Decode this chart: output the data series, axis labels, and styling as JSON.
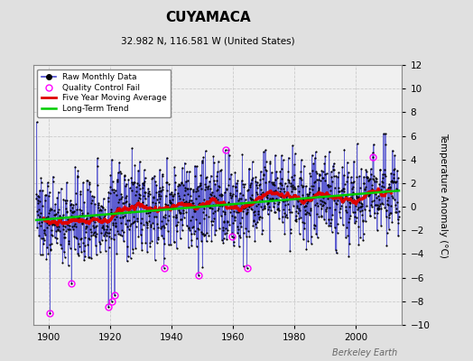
{
  "title": "CUYAMACA",
  "subtitle": "32.982 N, 116.581 W (United States)",
  "ylabel": "Temperature Anomaly (°C)",
  "watermark": "Berkeley Earth",
  "year_start": 1896,
  "year_end": 2014,
  "ylim": [
    -10,
    12
  ],
  "yticks": [
    -10,
    -8,
    -6,
    -4,
    -2,
    0,
    2,
    4,
    6,
    8,
    10,
    12
  ],
  "xticks": [
    1900,
    1920,
    1940,
    1960,
    1980,
    2000
  ],
  "bg_color": "#e0e0e0",
  "plot_bg_color": "#f0f0f0",
  "raw_line_color": "#4444cc",
  "raw_dot_color": "#000000",
  "qc_fail_color": "#ff00ff",
  "moving_avg_color": "#dd0000",
  "trend_color": "#00cc00",
  "seed": 137
}
